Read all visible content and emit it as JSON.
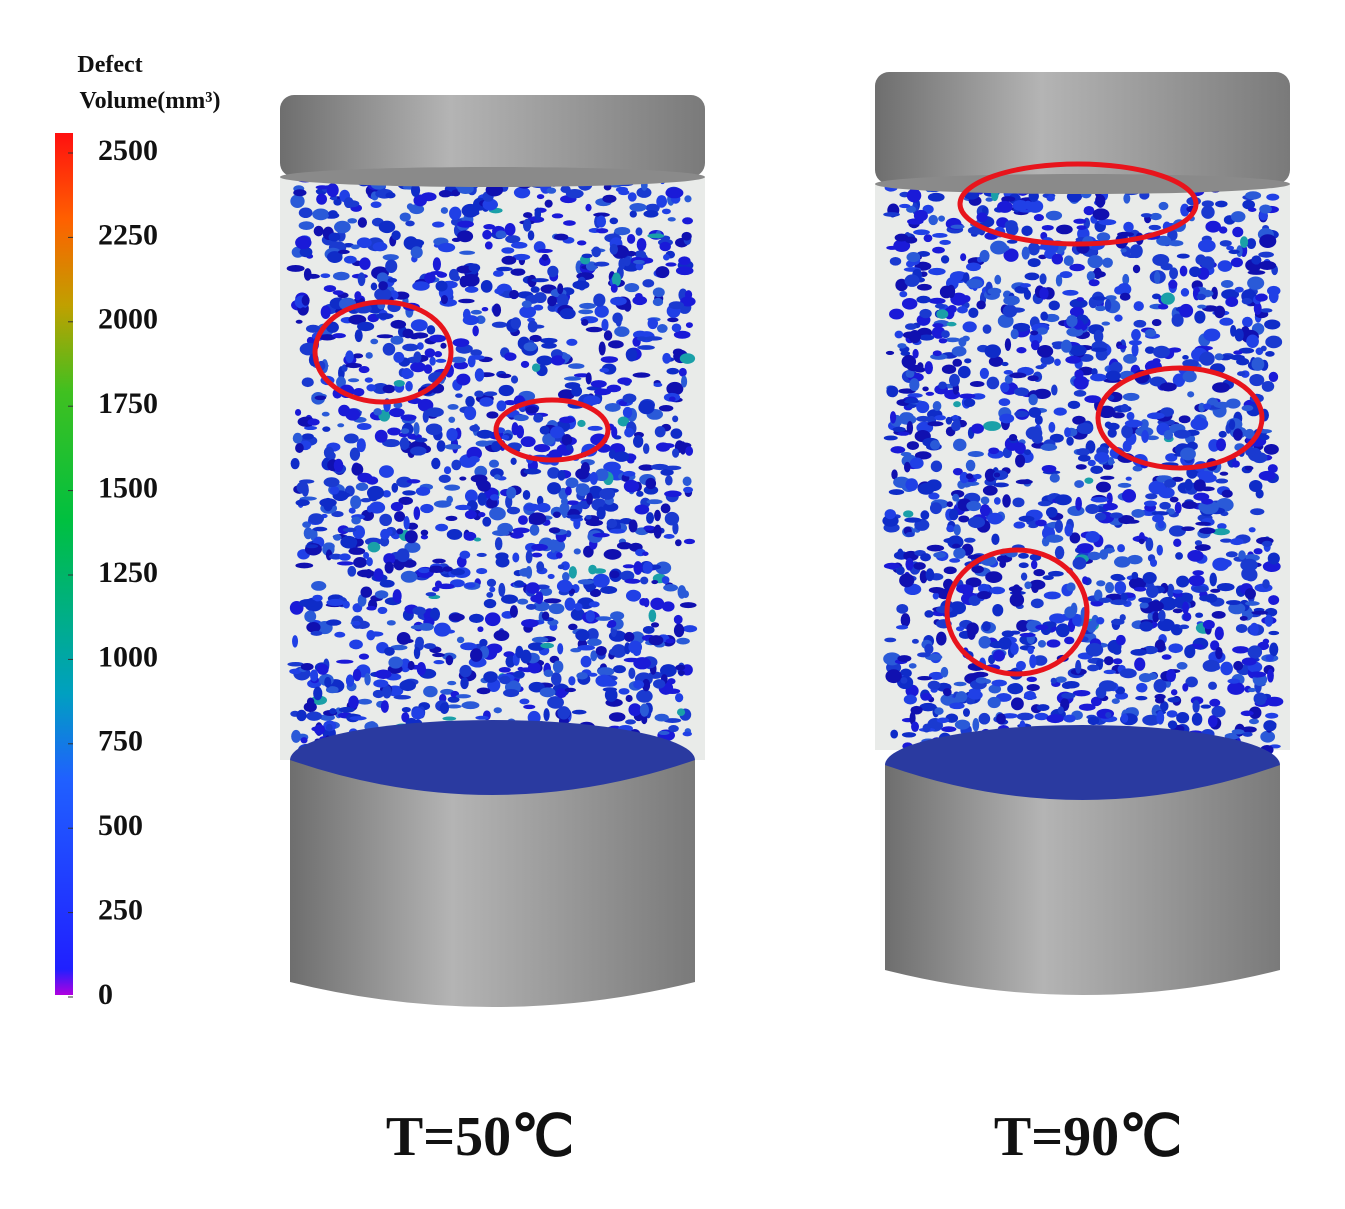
{
  "colorbar": {
    "title": [
      "Defect",
      "Volume(mm³)"
    ],
    "lim": [
      0,
      2500
    ],
    "ticks": [
      0,
      250,
      500,
      750,
      1000,
      1250,
      1500,
      1750,
      2000,
      2250,
      2500
    ]
  },
  "panels": [
    {
      "label": "T=50℃"
    },
    {
      "label": "T=90℃"
    }
  ]
}
